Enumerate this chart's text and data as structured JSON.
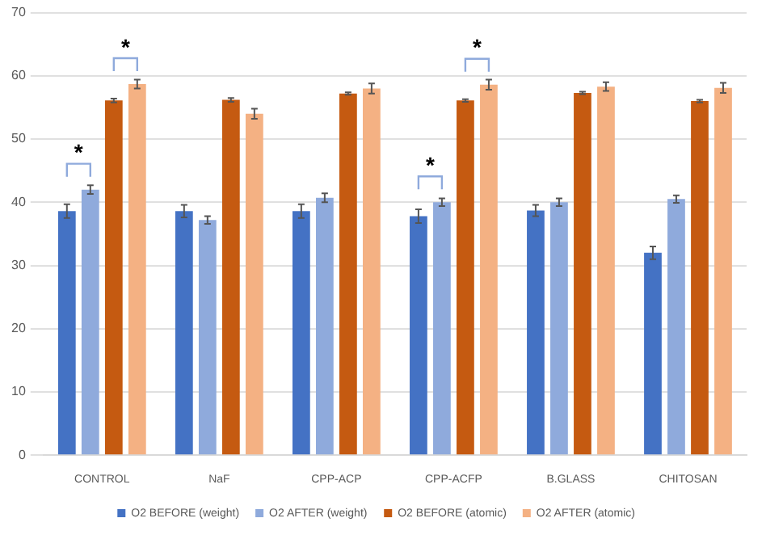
{
  "chart_data": {
    "type": "bar",
    "categories": [
      "CONTROL",
      "NaF",
      "CPP-ACP",
      "CPP-ACFP",
      "B.GLASS",
      "CHITOSAN"
    ],
    "series": [
      {
        "name": "O2 BEFORE (weight)",
        "color": "#4472c4",
        "values": [
          38.6,
          38.6,
          38.6,
          37.8,
          38.7,
          32
        ],
        "errors": [
          1.1,
          1,
          1.1,
          1.1,
          0.9,
          1
        ]
      },
      {
        "name": "O2 AFTER (weight)",
        "color": "#8faadc",
        "values": [
          42,
          37.2,
          40.7,
          40,
          40,
          40.5
        ],
        "errors": [
          0.7,
          0.6,
          0.7,
          0.6,
          0.6,
          0.6
        ]
      },
      {
        "name": "O2 BEFORE (atomic)",
        "color": "#c55a11",
        "values": [
          56.1,
          56.2,
          57.2,
          56.1,
          57.3,
          56
        ],
        "errors": [
          0.3,
          0.3,
          0.2,
          0.2,
          0.2,
          0.2
        ]
      },
      {
        "name": "O2 AFTER (atomic)",
        "color": "#f4b183",
        "values": [
          58.7,
          54,
          58,
          58.6,
          58.3,
          58.1
        ],
        "errors": [
          0.7,
          0.8,
          0.8,
          0.8,
          0.7,
          0.8
        ]
      }
    ],
    "ylim": [
      0,
      70
    ],
    "yticks": [
      0,
      10,
      20,
      30,
      40,
      50,
      60,
      70
    ],
    "grid": "y",
    "legend": "bottom",
    "annotations": [
      "*",
      "*",
      "*",
      "*"
    ]
  }
}
